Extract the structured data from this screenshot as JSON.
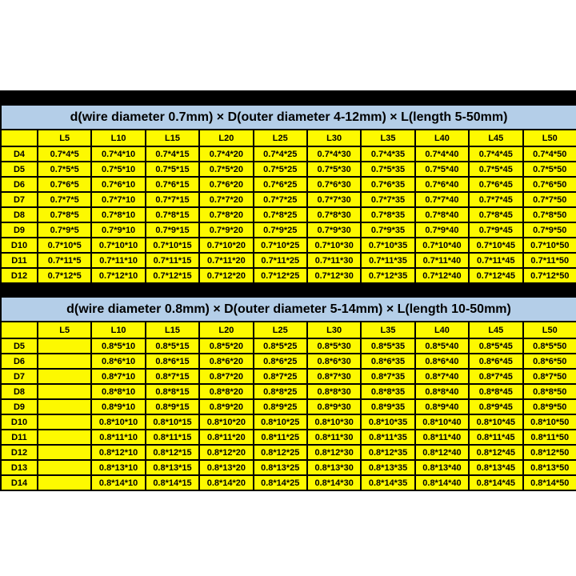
{
  "colors": {
    "page_bg": "#ffffff",
    "band": "#000000",
    "cell_bg": "#fdf900",
    "title_bg": "#b4cee8",
    "text": "#000000",
    "border": "#000000"
  },
  "tables": [
    {
      "title": "d(wire diameter 0.7mm) × D(outer diameter 4-12mm) × L(length 5-50mm)",
      "columns": [
        "",
        "L5",
        "L10",
        "L15",
        "L20",
        "L25",
        "L30",
        "L35",
        "L40",
        "L45",
        "L50"
      ],
      "rows": [
        {
          "label": "D4",
          "cells": [
            "0.7*4*5",
            "0.7*4*10",
            "0.7*4*15",
            "0.7*4*20",
            "0.7*4*25",
            "0.7*4*30",
            "0.7*4*35",
            "0.7*4*40",
            "0.7*4*45",
            "0.7*4*50"
          ]
        },
        {
          "label": "D5",
          "cells": [
            "0.7*5*5",
            "0.7*5*10",
            "0.7*5*15",
            "0.7*5*20",
            "0.7*5*25",
            "0.7*5*30",
            "0.7*5*35",
            "0.7*5*40",
            "0.7*5*45",
            "0.7*5*50"
          ]
        },
        {
          "label": "D6",
          "cells": [
            "0.7*6*5",
            "0.7*6*10",
            "0.7*6*15",
            "0.7*6*20",
            "0.7*6*25",
            "0.7*6*30",
            "0.7*6*35",
            "0.7*6*40",
            "0.7*6*45",
            "0.7*6*50"
          ]
        },
        {
          "label": "D7",
          "cells": [
            "0.7*7*5",
            "0.7*7*10",
            "0.7*7*15",
            "0.7*7*20",
            "0.7*7*25",
            "0.7*7*30",
            "0.7*7*35",
            "0.7*7*40",
            "0.7*7*45",
            "0.7*7*50"
          ]
        },
        {
          "label": "D8",
          "cells": [
            "0.7*8*5",
            "0.7*8*10",
            "0.7*8*15",
            "0.7*8*20",
            "0.7*8*25",
            "0.7*8*30",
            "0.7*8*35",
            "0.7*8*40",
            "0.7*8*45",
            "0.7*8*50"
          ]
        },
        {
          "label": "D9",
          "cells": [
            "0.7*9*5",
            "0.7*9*10",
            "0.7*9*15",
            "0.7*9*20",
            "0.7*9*25",
            "0.7*9*30",
            "0.7*9*35",
            "0.7*9*40",
            "0.7*9*45",
            "0.7*9*50"
          ]
        },
        {
          "label": "D10",
          "cells": [
            "0.7*10*5",
            "0.7*10*10",
            "0.7*10*15",
            "0.7*10*20",
            "0.7*10*25",
            "0.7*10*30",
            "0.7*10*35",
            "0.7*10*40",
            "0.7*10*45",
            "0.7*10*50"
          ]
        },
        {
          "label": "D11",
          "cells": [
            "0.7*11*5",
            "0.7*11*10",
            "0.7*11*15",
            "0.7*11*20",
            "0.7*11*25",
            "0.7*11*30",
            "0.7*11*35",
            "0.7*11*40",
            "0.7*11*45",
            "0.7*11*50"
          ]
        },
        {
          "label": "D12",
          "cells": [
            "0.7*12*5",
            "0.7*12*10",
            "0.7*12*15",
            "0.7*12*20",
            "0.7*12*25",
            "0.7*12*30",
            "0.7*12*35",
            "0.7*12*40",
            "0.7*12*45",
            "0.7*12*50"
          ]
        }
      ]
    },
    {
      "title": "d(wire diameter 0.8mm) × D(outer diameter 5-14mm) × L(length 10-50mm)",
      "columns": [
        "",
        "L5",
        "L10",
        "L15",
        "L20",
        "L25",
        "L30",
        "L35",
        "L40",
        "L45",
        "L50"
      ],
      "rows": [
        {
          "label": "D5",
          "cells": [
            "",
            "0.8*5*10",
            "0.8*5*15",
            "0.8*5*20",
            "0.8*5*25",
            "0.8*5*30",
            "0.8*5*35",
            "0.8*5*40",
            "0.8*5*45",
            "0.8*5*50"
          ]
        },
        {
          "label": "D6",
          "cells": [
            "",
            "0.8*6*10",
            "0.8*6*15",
            "0.8*6*20",
            "0.8*6*25",
            "0.8*6*30",
            "0.8*6*35",
            "0.8*6*40",
            "0.8*6*45",
            "0.8*6*50"
          ]
        },
        {
          "label": "D7",
          "cells": [
            "",
            "0.8*7*10",
            "0.8*7*15",
            "0.8*7*20",
            "0.8*7*25",
            "0.8*7*30",
            "0.8*7*35",
            "0.8*7*40",
            "0.8*7*45",
            "0.8*7*50"
          ]
        },
        {
          "label": "D8",
          "cells": [
            "",
            "0.8*8*10",
            "0.8*8*15",
            "0.8*8*20",
            "0.8*8*25",
            "0.8*8*30",
            "0.8*8*35",
            "0.8*8*40",
            "0.8*8*45",
            "0.8*8*50"
          ]
        },
        {
          "label": "D9",
          "cells": [
            "",
            "0.8*9*10",
            "0.8*9*15",
            "0.8*9*20",
            "0.8*9*25",
            "0.8*9*30",
            "0.8*9*35",
            "0.8*9*40",
            "0.8*9*45",
            "0.8*9*50"
          ]
        },
        {
          "label": "D10",
          "cells": [
            "",
            "0.8*10*10",
            "0.8*10*15",
            "0.8*10*20",
            "0.8*10*25",
            "0.8*10*30",
            "0.8*10*35",
            "0.8*10*40",
            "0.8*10*45",
            "0.8*10*50"
          ]
        },
        {
          "label": "D11",
          "cells": [
            "",
            "0.8*11*10",
            "0.8*11*15",
            "0.8*11*20",
            "0.8*11*25",
            "0.8*11*30",
            "0.8*11*35",
            "0.8*11*40",
            "0.8*11*45",
            "0.8*11*50"
          ]
        },
        {
          "label": "D12",
          "cells": [
            "",
            "0.8*12*10",
            "0.8*12*15",
            "0.8*12*20",
            "0.8*12*25",
            "0.8*12*30",
            "0.8*12*35",
            "0.8*12*40",
            "0.8*12*45",
            "0.8*12*50"
          ]
        },
        {
          "label": "D13",
          "cells": [
            "",
            "0.8*13*10",
            "0.8*13*15",
            "0.8*13*20",
            "0.8*13*25",
            "0.8*13*30",
            "0.8*13*35",
            "0.8*13*40",
            "0.8*13*45",
            "0.8*13*50"
          ]
        },
        {
          "label": "D14",
          "cells": [
            "",
            "0.8*14*10",
            "0.8*14*15",
            "0.8*14*20",
            "0.8*14*25",
            "0.8*14*30",
            "0.8*14*35",
            "0.8*14*40",
            "0.8*14*45",
            "0.8*14*50"
          ]
        }
      ]
    }
  ]
}
